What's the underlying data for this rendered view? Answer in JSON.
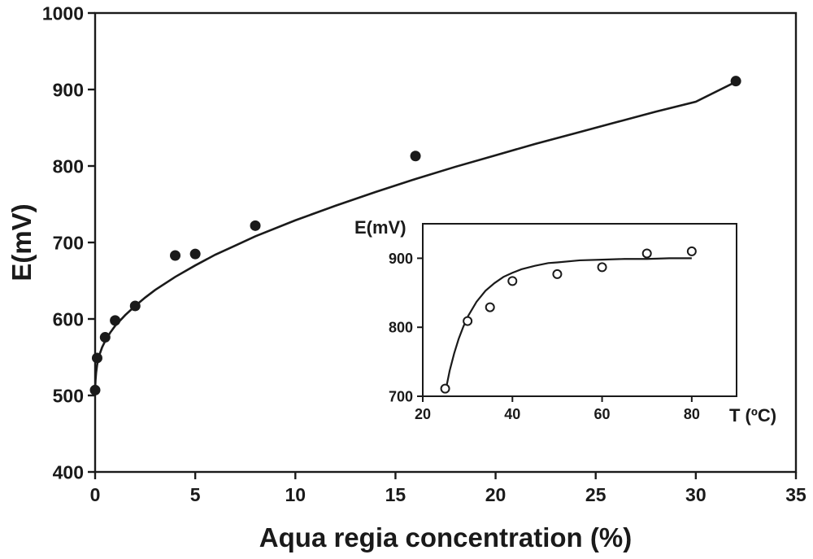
{
  "chart_data": [
    {
      "id": "main",
      "type": "scatter",
      "xlabel": "Aqua regia concentration (%)",
      "ylabel": "E(mV)",
      "xlim": [
        0,
        35
      ],
      "ylim": [
        400,
        1000
      ],
      "xticks": [
        0,
        5,
        10,
        15,
        20,
        25,
        30,
        35
      ],
      "yticks": [
        400,
        500,
        600,
        700,
        800,
        900,
        1000
      ],
      "grid": false,
      "marker": "filled-circle",
      "series": [
        {
          "x": [
            0,
            0.1,
            0.5,
            1,
            2,
            4,
            5,
            8,
            16,
            32
          ],
          "y": [
            507,
            549,
            576,
            598,
            617,
            683,
            685,
            722,
            813,
            911
          ]
        }
      ],
      "fit_curve": {
        "x": [
          0,
          0.02,
          0.05,
          0.1,
          0.2,
          0.35,
          0.5,
          0.75,
          1,
          1.5,
          2,
          2.5,
          3,
          4,
          5,
          6,
          7,
          8,
          10,
          12,
          14,
          16,
          18,
          20,
          22,
          24,
          26,
          28,
          30,
          32
        ],
        "y": [
          507,
          520,
          530,
          540,
          552,
          563,
          571,
          582,
          591,
          605,
          617,
          628,
          638,
          655,
          670,
          684,
          696,
          708,
          729,
          748,
          766,
          783,
          799,
          814,
          829,
          843,
          857,
          871,
          884,
          910
        ]
      }
    },
    {
      "id": "inset",
      "type": "scatter",
      "xlabel": "T (ºC)",
      "ylabel": "E(mV)",
      "xlim": [
        20,
        90
      ],
      "ylim": [
        700,
        950
      ],
      "xticks": [
        20,
        40,
        60,
        80
      ],
      "yticks": [
        700,
        800,
        900
      ],
      "grid": false,
      "marker": "open-circle",
      "series": [
        {
          "x": [
            25,
            30,
            35,
            40,
            50,
            60,
            70,
            80
          ],
          "y": [
            711,
            809,
            829,
            867,
            877,
            887,
            907,
            910
          ]
        }
      ],
      "fit_curve": {
        "x": [
          25,
          26,
          27,
          28,
          29,
          30,
          32,
          34,
          36,
          38,
          40,
          42,
          45,
          48,
          50,
          55,
          60,
          65,
          70,
          75,
          80
        ],
        "y": [
          705,
          737,
          762,
          783,
          800,
          815,
          837,
          853,
          864,
          873,
          879,
          884,
          889,
          893,
          894,
          897,
          898,
          899,
          899,
          900,
          900
        ]
      }
    }
  ]
}
